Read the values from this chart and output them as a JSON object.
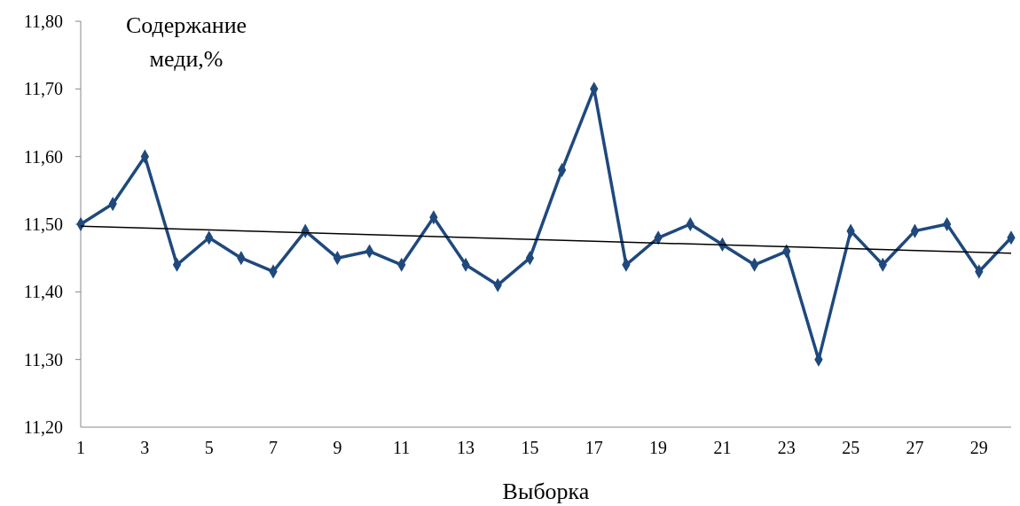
{
  "chart_data": {
    "type": "line",
    "ylabel": "Содержание меди,%",
    "xlabel": "Выборка",
    "x": [
      1,
      2,
      3,
      4,
      5,
      6,
      7,
      8,
      9,
      10,
      11,
      12,
      13,
      14,
      15,
      16,
      17,
      18,
      19,
      20,
      21,
      22,
      23,
      24,
      25,
      26,
      27,
      28,
      29,
      30
    ],
    "series": [
      {
        "color": "#1f497d",
        "marker": "diamond",
        "values": [
          11.5,
          11.53,
          11.6,
          11.44,
          11.48,
          11.45,
          11.43,
          11.49,
          11.45,
          11.46,
          11.44,
          11.51,
          11.44,
          11.41,
          11.45,
          11.58,
          11.7,
          11.44,
          11.48,
          11.5,
          11.47,
          11.44,
          11.46,
          11.3,
          11.49,
          11.44,
          11.49,
          11.5,
          11.43,
          11.48
        ]
      },
      {
        "type": "line",
        "color": "#000000",
        "marker": "none",
        "x": [
          1,
          30
        ],
        "values": [
          11.497,
          11.457
        ]
      }
    ],
    "xlim": [
      1,
      30
    ],
    "xticks": [
      1,
      3,
      5,
      7,
      9,
      11,
      13,
      15,
      17,
      19,
      21,
      23,
      25,
      27,
      29
    ],
    "ylim": [
      11.2,
      11.8
    ],
    "yticks": [
      {
        "value": 11.2,
        "label": "11,20"
      },
      {
        "value": 11.3,
        "label": "11,30"
      },
      {
        "value": 11.4,
        "label": "11,40"
      },
      {
        "value": 11.5,
        "label": "11,50"
      },
      {
        "value": 11.6,
        "label": "11,60"
      },
      {
        "value": 11.7,
        "label": "11,70"
      },
      {
        "value": 11.8,
        "label": "11,80"
      }
    ],
    "grid": false
  }
}
